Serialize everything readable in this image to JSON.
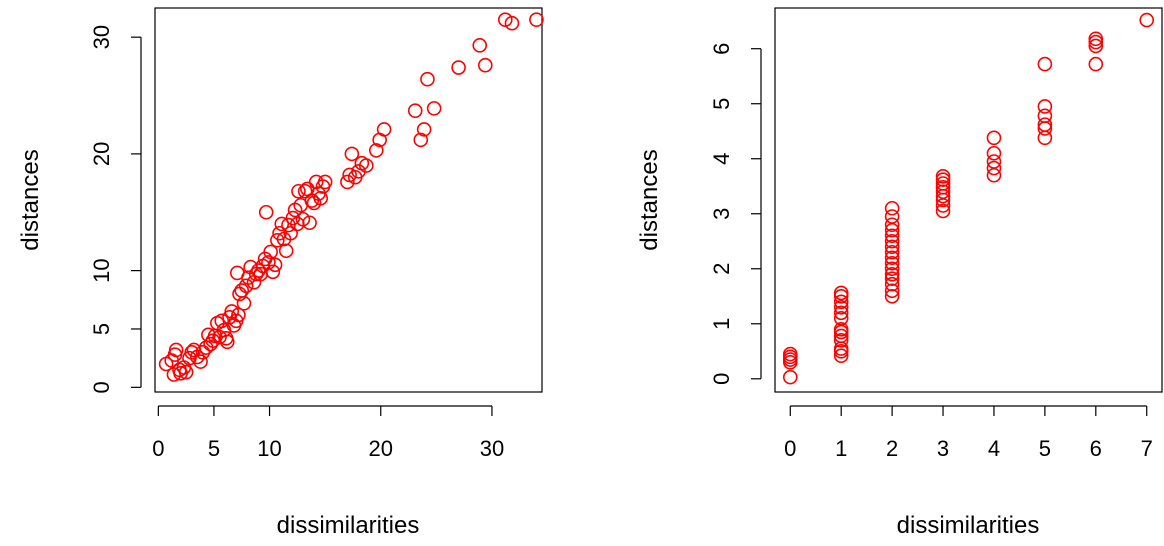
{
  "chart_data": [
    {
      "type": "scatter",
      "xlabel": "dissimilarities",
      "ylabel": "distances",
      "xlim": [
        -0.3,
        34.5
      ],
      "ylim": [
        -0.4,
        32.5
      ],
      "xticks": [
        0,
        5,
        10,
        20,
        30
      ],
      "yticks": [
        0,
        5,
        10,
        20,
        30
      ],
      "grid": false,
      "legend": "none",
      "point_color": "#ff0000",
      "points": [
        [
          0.7,
          2.0
        ],
        [
          1.2,
          2.3
        ],
        [
          1.4,
          1.1
        ],
        [
          1.5,
          2.8
        ],
        [
          1.6,
          3.2
        ],
        [
          1.9,
          1.5
        ],
        [
          2.0,
          1.2
        ],
        [
          2.3,
          1.7
        ],
        [
          2.5,
          1.3
        ],
        [
          2.8,
          2.5
        ],
        [
          3.0,
          3.0
        ],
        [
          3.2,
          3.2
        ],
        [
          3.5,
          2.6
        ],
        [
          3.8,
          2.2
        ],
        [
          4.0,
          3.0
        ],
        [
          4.3,
          3.4
        ],
        [
          4.5,
          4.5
        ],
        [
          4.7,
          3.7
        ],
        [
          4.9,
          4.0
        ],
        [
          5.1,
          4.4
        ],
        [
          5.3,
          5.5
        ],
        [
          5.5,
          4.3
        ],
        [
          5.7,
          5.7
        ],
        [
          5.9,
          4.9
        ],
        [
          6.1,
          4.2
        ],
        [
          6.2,
          3.9
        ],
        [
          6.4,
          6.0
        ],
        [
          6.6,
          6.5
        ],
        [
          6.8,
          5.3
        ],
        [
          7.0,
          5.7
        ],
        [
          7.1,
          9.8
        ],
        [
          7.2,
          6.2
        ],
        [
          7.3,
          8.0
        ],
        [
          7.5,
          8.3
        ],
        [
          7.7,
          7.2
        ],
        [
          7.9,
          8.7
        ],
        [
          8.1,
          9.4
        ],
        [
          8.3,
          10.3
        ],
        [
          8.6,
          9.0
        ],
        [
          8.8,
          9.7
        ],
        [
          9.0,
          10.0
        ],
        [
          9.2,
          9.7
        ],
        [
          9.4,
          10.4
        ],
        [
          9.6,
          11.0
        ],
        [
          9.7,
          15.0
        ],
        [
          9.9,
          10.7
        ],
        [
          10.1,
          11.6
        ],
        [
          10.3,
          9.9
        ],
        [
          10.5,
          10.5
        ],
        [
          10.7,
          12.6
        ],
        [
          10.9,
          13.2
        ],
        [
          11.1,
          14.0
        ],
        [
          11.3,
          12.7
        ],
        [
          11.5,
          11.7
        ],
        [
          11.7,
          13.9
        ],
        [
          11.9,
          13.2
        ],
        [
          12.1,
          14.5
        ],
        [
          12.3,
          15.2
        ],
        [
          12.5,
          14.0
        ],
        [
          12.6,
          16.8
        ],
        [
          12.8,
          15.6
        ],
        [
          13.0,
          14.4
        ],
        [
          13.2,
          16.8
        ],
        [
          13.4,
          17.0
        ],
        [
          13.6,
          14.1
        ],
        [
          13.8,
          16.0
        ],
        [
          14.0,
          15.8
        ],
        [
          14.2,
          17.6
        ],
        [
          14.4,
          16.6
        ],
        [
          14.6,
          16.2
        ],
        [
          14.8,
          17.2
        ],
        [
          15.0,
          17.6
        ],
        [
          17.0,
          17.6
        ],
        [
          17.2,
          18.2
        ],
        [
          17.4,
          20.0
        ],
        [
          17.7,
          18.0
        ],
        [
          18.0,
          18.5
        ],
        [
          18.3,
          19.2
        ],
        [
          18.7,
          19.0
        ],
        [
          19.6,
          20.3
        ],
        [
          19.9,
          21.2
        ],
        [
          20.3,
          22.1
        ],
        [
          23.1,
          23.7
        ],
        [
          23.6,
          21.2
        ],
        [
          23.9,
          22.1
        ],
        [
          24.2,
          26.4
        ],
        [
          24.8,
          23.9
        ],
        [
          27.0,
          27.4
        ],
        [
          28.9,
          29.3
        ],
        [
          29.4,
          27.6
        ],
        [
          31.2,
          31.5
        ],
        [
          31.8,
          31.2
        ],
        [
          34.0,
          31.5
        ]
      ]
    },
    {
      "type": "scatter",
      "xlabel": "dissimilarities",
      "ylabel": "distances",
      "xlim": [
        -0.3,
        7.3
      ],
      "ylim": [
        -0.24,
        6.74
      ],
      "xticks": [
        0,
        1,
        2,
        3,
        4,
        5,
        6,
        7
      ],
      "yticks": [
        0,
        1,
        2,
        3,
        4,
        5,
        6
      ],
      "grid": false,
      "legend": "none",
      "point_color": "#ff0000",
      "points": [
        [
          0,
          0.03
        ],
        [
          0,
          0.3
        ],
        [
          0,
          0.35
        ],
        [
          0,
          0.4
        ],
        [
          0,
          0.45
        ],
        [
          1,
          0.42
        ],
        [
          1,
          0.5
        ],
        [
          1,
          0.55
        ],
        [
          1,
          0.7
        ],
        [
          1,
          0.78
        ],
        [
          1,
          0.85
        ],
        [
          1,
          0.9
        ],
        [
          1,
          1.1
        ],
        [
          1,
          1.2
        ],
        [
          1,
          1.3
        ],
        [
          1,
          1.4
        ],
        [
          1,
          1.5
        ],
        [
          1,
          1.56
        ],
        [
          2,
          1.5
        ],
        [
          2,
          1.6
        ],
        [
          2,
          1.72
        ],
        [
          2,
          1.82
        ],
        [
          2,
          1.9
        ],
        [
          2,
          2.0
        ],
        [
          2,
          2.1
        ],
        [
          2,
          2.2
        ],
        [
          2,
          2.3
        ],
        [
          2,
          2.4
        ],
        [
          2,
          2.5
        ],
        [
          2,
          2.6
        ],
        [
          2,
          2.7
        ],
        [
          2,
          2.8
        ],
        [
          2,
          2.95
        ],
        [
          2,
          3.1
        ],
        [
          3,
          3.05
        ],
        [
          3,
          3.15
        ],
        [
          3,
          3.25
        ],
        [
          3,
          3.32
        ],
        [
          3,
          3.4
        ],
        [
          3,
          3.48
        ],
        [
          3,
          3.55
        ],
        [
          3,
          3.62
        ],
        [
          3,
          3.68
        ],
        [
          4,
          3.7
        ],
        [
          4,
          3.83
        ],
        [
          4,
          3.95
        ],
        [
          4,
          4.1
        ],
        [
          4,
          4.38
        ],
        [
          5,
          4.38
        ],
        [
          5,
          4.55
        ],
        [
          5,
          4.62
        ],
        [
          5,
          4.78
        ],
        [
          5,
          4.95
        ],
        [
          5,
          5.72
        ],
        [
          6,
          5.72
        ],
        [
          6,
          6.05
        ],
        [
          6,
          6.12
        ],
        [
          6,
          6.18
        ],
        [
          7,
          6.52
        ]
      ]
    }
  ]
}
